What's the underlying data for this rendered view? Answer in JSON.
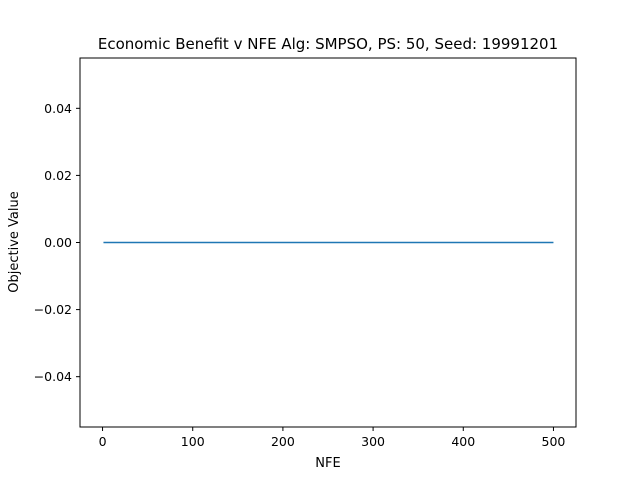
{
  "chart_data": {
    "type": "line",
    "title": "Economic Benefit v NFE Alg: SMPSO, PS: 50, Seed: 19991201",
    "xlabel": "NFE",
    "ylabel": "Objective Value",
    "xlim": [
      -25,
      525
    ],
    "ylim": [
      -0.055,
      0.055
    ],
    "xticks": [
      {
        "value": 0,
        "label": "0"
      },
      {
        "value": 100,
        "label": "100"
      },
      {
        "value": 200,
        "label": "200"
      },
      {
        "value": 300,
        "label": "300"
      },
      {
        "value": 400,
        "label": "400"
      },
      {
        "value": 500,
        "label": "500"
      }
    ],
    "yticks": [
      {
        "value": -0.04,
        "label": "−0.04"
      },
      {
        "value": -0.02,
        "label": "−0.02"
      },
      {
        "value": 0.0,
        "label": "0.00"
      },
      {
        "value": 0.02,
        "label": "0.02"
      },
      {
        "value": 0.04,
        "label": "0.04"
      }
    ],
    "grid": false,
    "series": [
      {
        "color": "#1f77b4",
        "x": [
          1,
          500
        ],
        "y": [
          0,
          0
        ]
      }
    ]
  }
}
